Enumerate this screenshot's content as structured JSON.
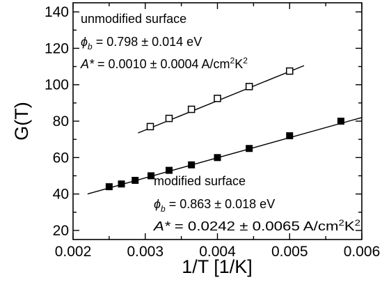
{
  "chart_data": {
    "type": "scatter",
    "xlabel": "1/T [1/K]",
    "ylabel": "G(T)",
    "xlim": [
      0.002,
      0.006
    ],
    "ylim": [
      15,
      145
    ],
    "x_ticks": [
      0.002,
      0.003,
      0.004,
      0.005,
      0.006
    ],
    "x_tick_labels": [
      "0.002",
      "0.003",
      "0.004",
      "0.005",
      "0.006"
    ],
    "y_ticks": [
      20,
      40,
      60,
      80,
      100,
      120,
      140
    ],
    "y_tick_labels": [
      "20",
      "40",
      "60",
      "80",
      "100",
      "120",
      "140"
    ],
    "grid": false,
    "legend": "none",
    "series": [
      {
        "marker": "open-square",
        "x": [
          0.00307,
          0.00333,
          0.00364,
          0.004,
          0.00444,
          0.005
        ],
        "y": [
          77,
          81.5,
          86.5,
          92.5,
          99,
          107.5
        ],
        "fit": {
          "x": [
            0.0029,
            0.0052
          ],
          "y": [
            73.5,
            110.5
          ]
        }
      },
      {
        "marker": "filled-square",
        "x": [
          0.0025,
          0.00267,
          0.00286,
          0.00308,
          0.00333,
          0.00364,
          0.004,
          0.00444,
          0.005,
          0.00571
        ],
        "y": [
          44,
          45.5,
          47.5,
          50,
          53,
          56,
          60,
          65,
          72,
          80
        ],
        "fit": {
          "x": [
            0.0022,
            0.006
          ],
          "y": [
            40,
            82
          ]
        }
      }
    ],
    "annotations": {
      "unmodified": {
        "title": "unmodified surface",
        "phi_sub": "b",
        "phi_value": " = 0.798 ± 0.014 eV",
        "A_label": "A*",
        "A_value": " = 0.0010 ± 0.0004 A/cm",
        "A_sup1": "2",
        "A_mid": "K",
        "A_sup2": "2"
      },
      "modified": {
        "title": "modified surface",
        "phi_sub": "b",
        "phi_value": " = 0.863 ± 0.018 eV",
        "A_label": "A*",
        "A_value": " = 0.0242 ± 0.0065 A/cm",
        "A_sup1": "2",
        "A_mid": "K",
        "A_sup2": "2"
      }
    }
  }
}
